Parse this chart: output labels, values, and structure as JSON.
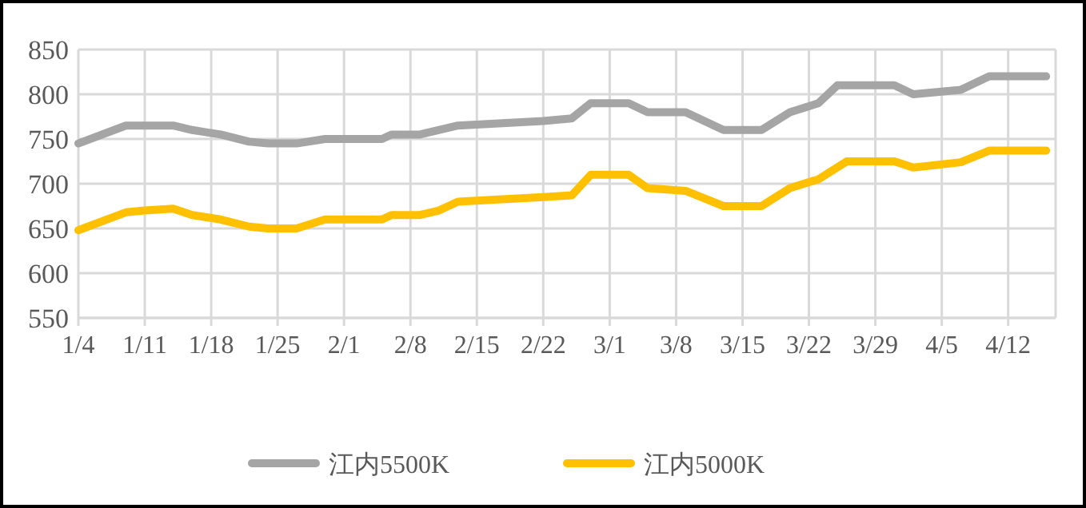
{
  "chart_data": {
    "type": "line",
    "grid": true,
    "legend": "bottom",
    "xlim": [
      "--01-04",
      "--04-17"
    ],
    "ylim": [
      550,
      850
    ],
    "yticks": [
      550,
      600,
      650,
      700,
      750,
      800,
      850
    ],
    "xticks": [
      {
        "value": "--01-04",
        "label": "1/4"
      },
      {
        "value": "--01-11",
        "label": "1/11"
      },
      {
        "value": "--01-18",
        "label": "1/18"
      },
      {
        "value": "--01-25",
        "label": "1/25"
      },
      {
        "value": "--02-01",
        "label": "2/1"
      },
      {
        "value": "--02-08",
        "label": "2/8"
      },
      {
        "value": "--02-15",
        "label": "2/15"
      },
      {
        "value": "--02-22",
        "label": "2/22"
      },
      {
        "value": "--03-01",
        "label": "3/1"
      },
      {
        "value": "--03-08",
        "label": "3/8"
      },
      {
        "value": "--03-15",
        "label": "3/15"
      },
      {
        "value": "--03-22",
        "label": "3/22"
      },
      {
        "value": "--03-29",
        "label": "3/29"
      },
      {
        "value": "--04-05",
        "label": "4/5"
      },
      {
        "value": "--04-12",
        "label": "4/12"
      }
    ],
    "series": [
      {
        "name": "江内5500K",
        "color": "#a5a5a5",
        "x": [
          "--01-04",
          "--01-09",
          "--01-14",
          "--01-16",
          "--01-19",
          "--01-22",
          "--01-24",
          "--01-27",
          "--01-30",
          "--02-05",
          "--02-06",
          "--02-09",
          "--02-13",
          "--02-22",
          "--02-25",
          "--02-27",
          "--03-03",
          "--03-05",
          "--03-09",
          "--03-13",
          "--03-17",
          "--03-20",
          "--03-23",
          "--03-25",
          "--03-31",
          "--04-02",
          "--04-07",
          "--04-10",
          "--04-16"
        ],
        "values": [
          745,
          765,
          765,
          760,
          755,
          747,
          745,
          745,
          750,
          750,
          755,
          755,
          765,
          770,
          773,
          790,
          790,
          780,
          780,
          760,
          760,
          780,
          790,
          810,
          810,
          800,
          805,
          820,
          820
        ]
      },
      {
        "name": "江内5000K",
        "color": "#ffc000",
        "x": [
          "--01-04",
          "--01-09",
          "--01-11",
          "--01-14",
          "--01-16",
          "--01-19",
          "--01-22",
          "--01-24",
          "--01-27",
          "--01-30",
          "--02-05",
          "--02-06",
          "--02-09",
          "--02-11",
          "--02-13",
          "--02-22",
          "--02-25",
          "--02-27",
          "--03-03",
          "--03-05",
          "--03-09",
          "--03-13",
          "--03-17",
          "--03-20",
          "--03-23",
          "--03-26",
          "--03-31",
          "--04-02",
          "--04-07",
          "--04-10",
          "--04-16"
        ],
        "values": [
          648,
          668,
          670,
          672,
          665,
          660,
          652,
          650,
          650,
          660,
          660,
          665,
          665,
          670,
          680,
          685,
          687,
          710,
          710,
          695,
          692,
          675,
          675,
          695,
          705,
          725,
          725,
          718,
          724,
          737,
          737
        ]
      }
    ]
  }
}
